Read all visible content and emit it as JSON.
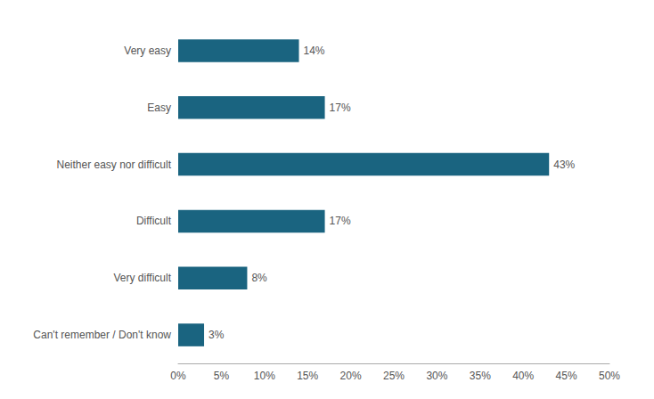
{
  "chart_data": {
    "type": "bar",
    "orientation": "horizontal",
    "categories": [
      "Very easy",
      "Easy",
      "Neither easy nor difficult",
      "Difficult",
      "Very difficult",
      "Can't remember / Don't know"
    ],
    "values": [
      14,
      17,
      43,
      17,
      8,
      3
    ],
    "value_labels": [
      "14%",
      "17%",
      "43%",
      "17%",
      "8%",
      "3%"
    ],
    "color": "#1a6480",
    "xlim": [
      0,
      50
    ],
    "xticks": [
      {
        "value": 0,
        "label": "0%"
      },
      {
        "value": 5,
        "label": "5%"
      },
      {
        "value": 10,
        "label": "10%"
      },
      {
        "value": 15,
        "label": "15%"
      },
      {
        "value": 20,
        "label": "20%"
      },
      {
        "value": 25,
        "label": "25%"
      },
      {
        "value": 30,
        "label": "30%"
      },
      {
        "value": 35,
        "label": "35%"
      },
      {
        "value": 40,
        "label": "40%"
      },
      {
        "value": 45,
        "label": "45%"
      },
      {
        "value": 50,
        "label": "50%"
      }
    ],
    "grid": false,
    "data_labels": true
  }
}
